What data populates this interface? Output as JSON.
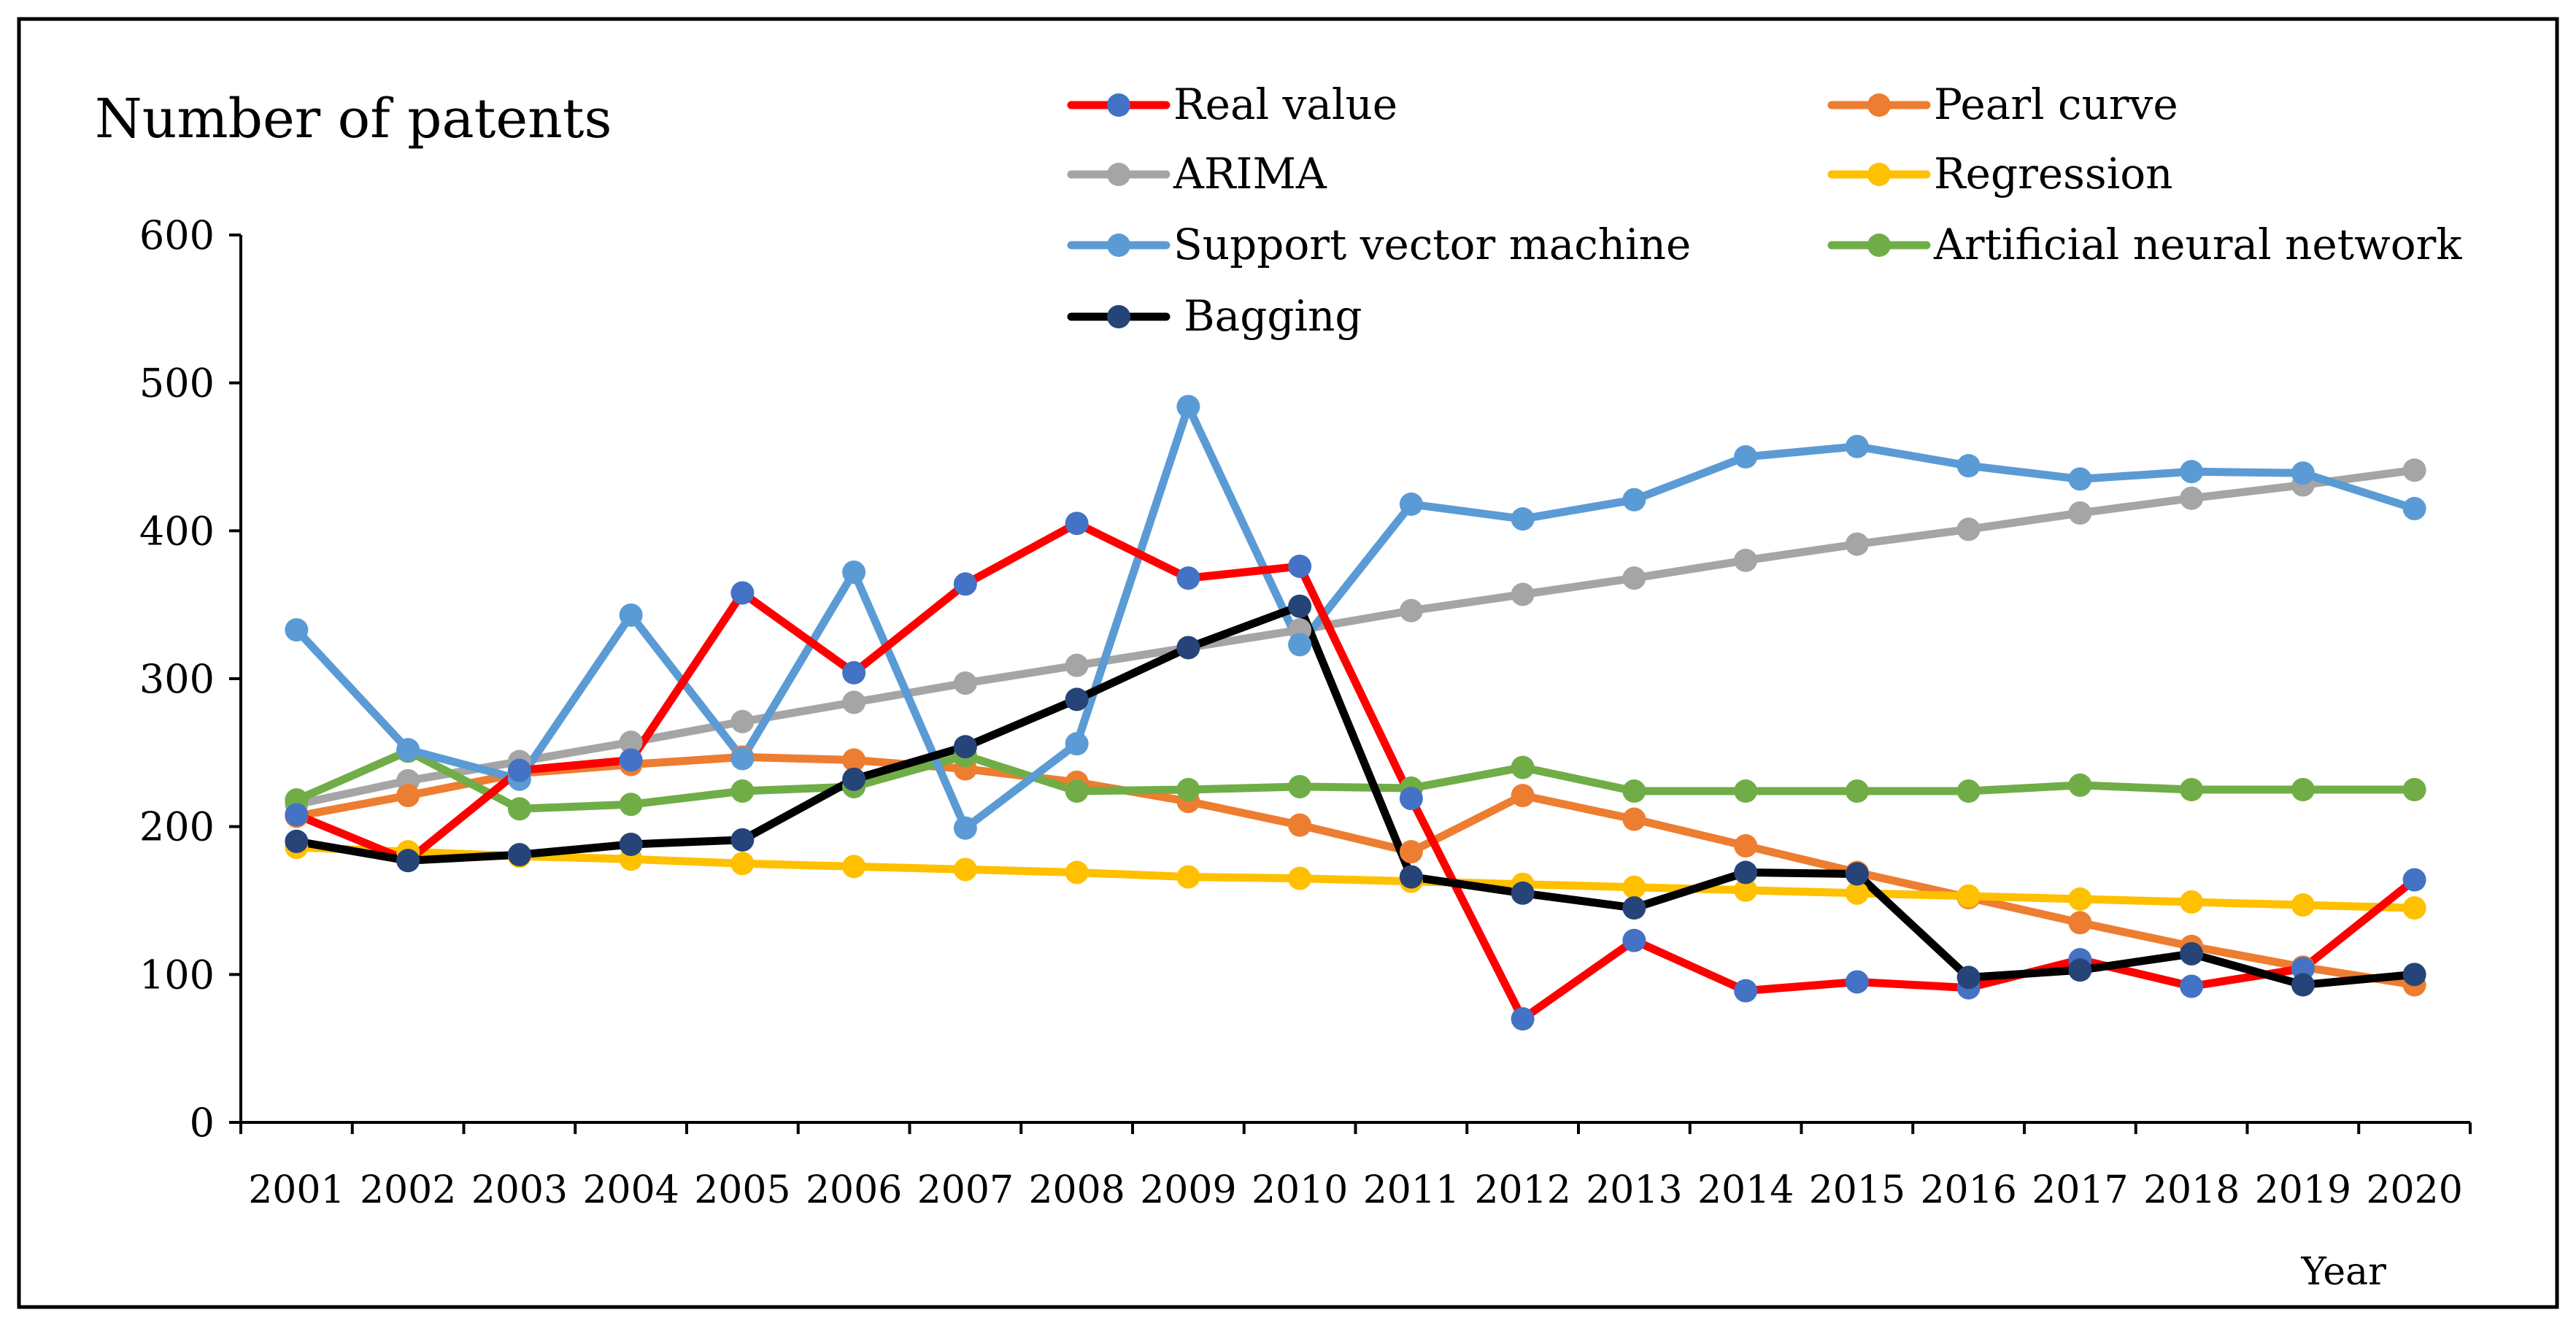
{
  "chart_data": {
    "type": "line",
    "title": "Number of patents",
    "xlabel": "Year",
    "ylabel": "Number of patents",
    "ylim": [
      0,
      600
    ],
    "yticks": [
      0,
      100,
      200,
      300,
      400,
      500,
      600
    ],
    "categories": [
      "2001",
      "2002",
      "2003",
      "2004",
      "2005",
      "2006",
      "2007",
      "2008",
      "2009",
      "2010",
      "2011",
      "2012",
      "2013",
      "2014",
      "2015",
      "2016",
      "2017",
      "2018",
      "2019",
      "2020"
    ],
    "series": [
      {
        "name": "ARIMA",
        "line_color": "#A5A5A5",
        "marker_color": "#A5A5A5",
        "values": [
          215,
          231,
          244,
          257,
          271,
          284,
          297,
          309,
          321,
          333,
          346,
          357,
          368,
          380,
          391,
          401,
          412,
          422,
          431,
          441
        ]
      },
      {
        "name": "Pearl curve",
        "line_color": "#ED7D31",
        "marker_color": "#ED7D31",
        "values": [
          207,
          221,
          236,
          242,
          247,
          245,
          239,
          230,
          217,
          201,
          183,
          221,
          205,
          187,
          169,
          152,
          135,
          119,
          105,
          93
        ]
      },
      {
        "name": "Regression",
        "line_color": "#FFC000",
        "marker_color": "#FFC000",
        "values": [
          186,
          183,
          180,
          178,
          175,
          173,
          171,
          169,
          166,
          165,
          163,
          161,
          159,
          157,
          155,
          153,
          151,
          149,
          147,
          145
        ]
      },
      {
        "name": "Artificial neural network",
        "line_color": "#70AD47",
        "marker_color": "#70AD47",
        "values": [
          218,
          251,
          212,
          215,
          224,
          227,
          248,
          224,
          225,
          227,
          226,
          240,
          224,
          224,
          224,
          224,
          228,
          225,
          225,
          225
        ]
      },
      {
        "name": "Support vector machine",
        "line_color": "#5B9BD5",
        "marker_color": "#5B9BD5",
        "values": [
          333,
          252,
          232,
          343,
          246,
          372,
          199,
          256,
          484,
          323,
          418,
          408,
          421,
          450,
          457,
          444,
          435,
          440,
          439,
          415
        ]
      },
      {
        "name": "Real value",
        "line_color": "#FF0000",
        "marker_color": "#4472C4",
        "values": [
          208,
          177,
          238,
          245,
          358,
          304,
          364,
          405,
          368,
          376,
          219,
          70,
          123,
          89,
          95,
          91,
          110,
          92,
          104,
          164
        ]
      },
      {
        "name": "Bagging",
        "line_color": "#000000",
        "marker_color": "#264478",
        "values": [
          190,
          177,
          181,
          188,
          191,
          232,
          254,
          286,
          321,
          349,
          166,
          155,
          145,
          169,
          168,
          98,
          103,
          114,
          93,
          100
        ]
      }
    ],
    "legend": {
      "placement": "top-right",
      "order": [
        "Real value",
        "Pearl curve",
        "ARIMA",
        "Regression",
        "Support vector machine",
        "Artificial neural network",
        "Bagging"
      ]
    },
    "grid": false
  }
}
